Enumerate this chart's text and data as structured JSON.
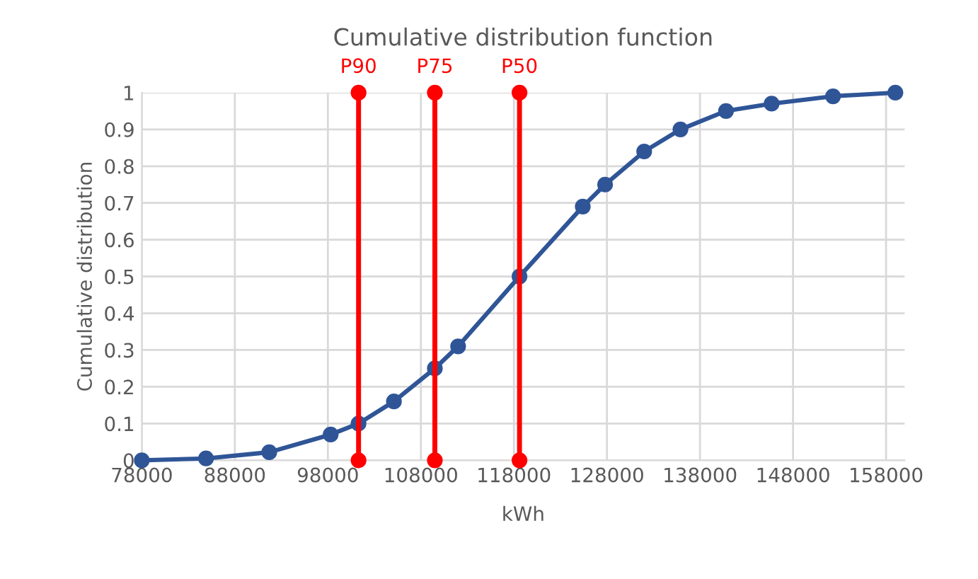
{
  "chart_data": {
    "type": "line",
    "title": "Cumulative distribution function",
    "xlabel": "kWh",
    "ylabel": "Cumulative distribution",
    "marker": "circle",
    "series": [
      {
        "color": "#2f5597",
        "x": [
          78000,
          84900,
          91700,
          98300,
          101300,
          105100,
          109500,
          112000,
          118600,
          125400,
          127800,
          132000,
          135900,
          140800,
          145700,
          152300,
          159000
        ],
        "values": [
          0,
          0.005,
          0.022,
          0.07,
          0.1,
          0.16,
          0.25,
          0.31,
          0.5,
          0.69,
          0.75,
          0.84,
          0.9,
          0.95,
          0.97,
          0.99,
          1.0
        ]
      },
      {
        "name": "P90",
        "color": "#ff0000",
        "x": [
          101300,
          101300
        ],
        "values": [
          0,
          1
        ]
      },
      {
        "name": "P75",
        "color": "#ff0000",
        "x": [
          109500,
          109500
        ],
        "values": [
          0,
          1
        ]
      },
      {
        "name": "P50",
        "color": "#ff0000",
        "x": [
          118600,
          118600
        ],
        "values": [
          0,
          1
        ]
      }
    ],
    "xlim": [
      78000,
      160000
    ],
    "xticks": [
      78000,
      88000,
      98000,
      108000,
      118000,
      128000,
      138000,
      148000,
      158000
    ],
    "ylim": [
      0,
      1
    ],
    "yticks": [
      0,
      0.1,
      0.2,
      0.3,
      0.4,
      0.5,
      0.6,
      0.7,
      0.8,
      0.9,
      1
    ],
    "grid": true
  }
}
